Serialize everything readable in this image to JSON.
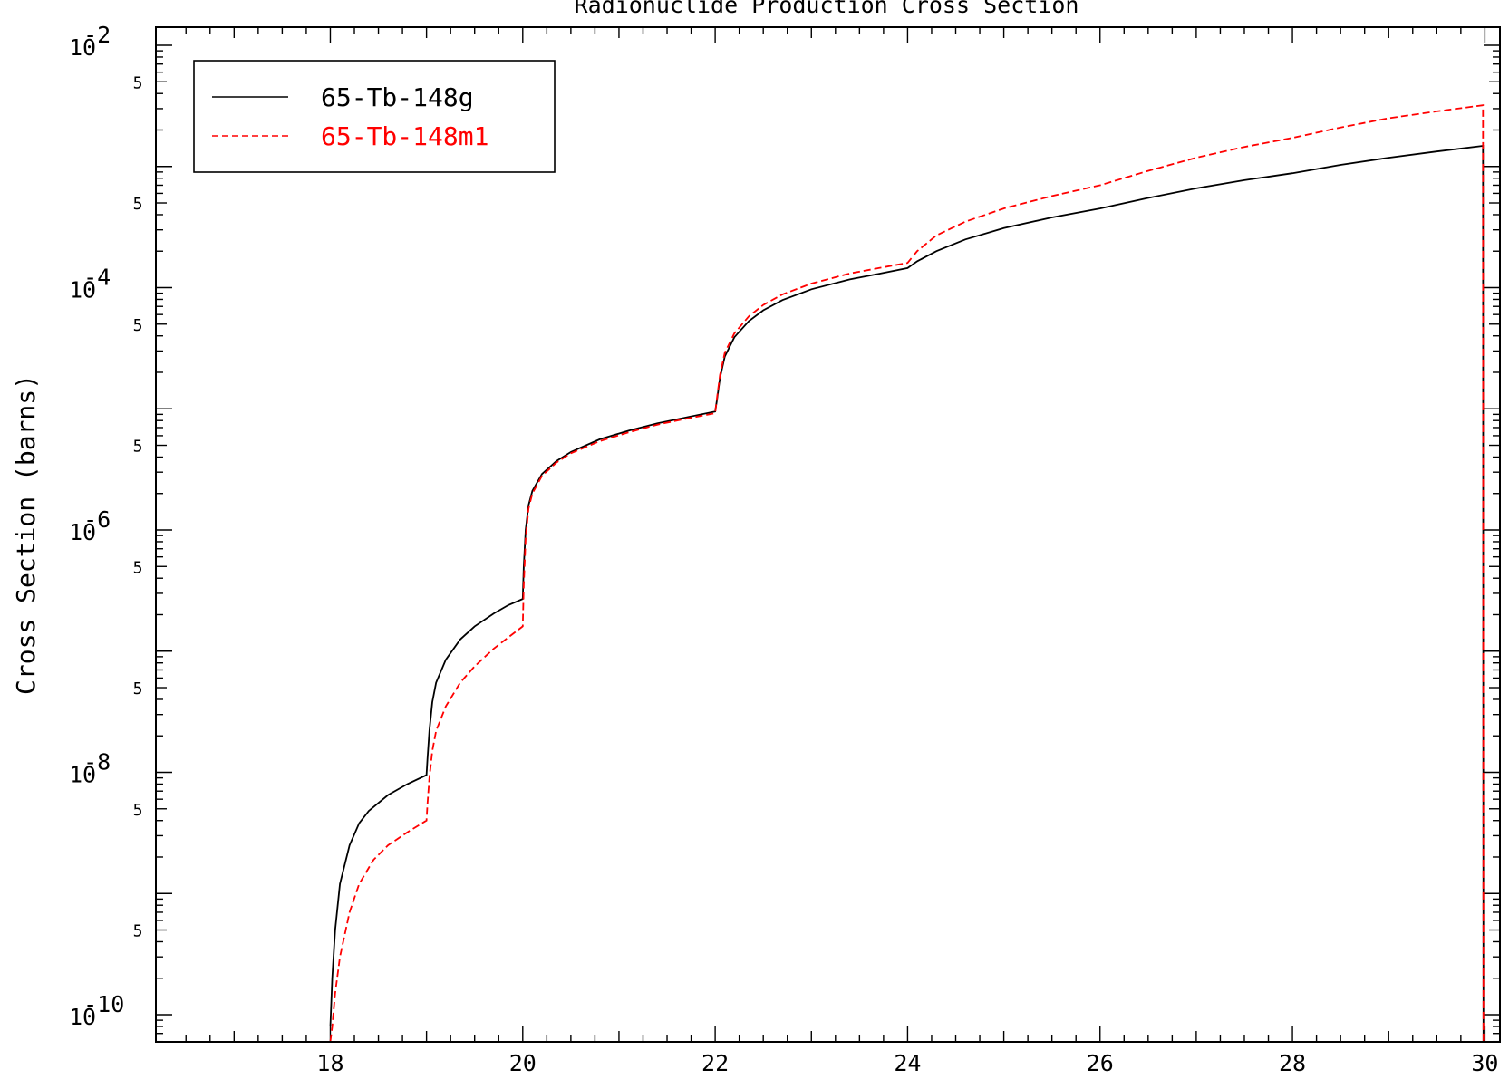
{
  "chart_data": {
    "type": "line",
    "title": "Radionuclide Production Cross Section",
    "xlabel": "",
    "ylabel": "Cross Section (barns)",
    "xlim": [
      16.3,
      30.1
    ],
    "ylim": [
      1e-10,
      0.01
    ],
    "y_scale": "log",
    "grid": false,
    "legend_position": "top-left",
    "x_ticks": [
      {
        "value": 18,
        "label": "18"
      },
      {
        "value": 20,
        "label": "20"
      },
      {
        "value": 22,
        "label": "22"
      },
      {
        "value": 24,
        "label": "24"
      },
      {
        "value": 26,
        "label": "26"
      },
      {
        "value": 28,
        "label": "28"
      },
      {
        "value": 30,
        "label": "30"
      }
    ],
    "y_major_ticks": [
      {
        "exp": -2,
        "base": "10",
        "sup": "-2"
      },
      {
        "exp": -4,
        "base": "10",
        "sup": "-4"
      },
      {
        "exp": -6,
        "base": "10",
        "sup": "-6"
      },
      {
        "exp": -8,
        "base": "10",
        "sup": "-8"
      },
      {
        "exp": -10,
        "base": "10",
        "sup": "-10"
      }
    ],
    "y_minor_label": "5",
    "series": [
      {
        "name": "65-Tb-148g",
        "color": "#000000",
        "dash": "solid",
        "x": [
          18.0,
          18.02,
          18.05,
          18.1,
          18.2,
          18.3,
          18.4,
          18.6,
          18.8,
          19.0,
          19.01,
          19.03,
          19.06,
          19.1,
          19.2,
          19.35,
          19.5,
          19.7,
          19.85,
          20.0,
          20.01,
          20.03,
          20.06,
          20.1,
          20.2,
          20.35,
          20.5,
          20.8,
          21.1,
          21.4,
          21.7,
          22.0,
          22.02,
          22.05,
          22.1,
          22.2,
          22.35,
          22.5,
          22.7,
          23.0,
          23.4,
          23.7,
          24.0,
          24.1,
          24.3,
          24.6,
          25.0,
          25.5,
          26.0,
          26.5,
          27.0,
          27.5,
          28.0,
          28.5,
          29.0,
          29.5,
          29.98,
          29.985,
          30.0
        ],
        "y": [
          8e-11,
          2e-10,
          5e-10,
          1.2e-09,
          2.5e-09,
          3.8e-09,
          4.8e-09,
          6.5e-09,
          8e-09,
          9.5e-09,
          1.3e-08,
          2.2e-08,
          3.8e-08,
          5.5e-08,
          8.5e-08,
          1.25e-07,
          1.6e-07,
          2.05e-07,
          2.4e-07,
          2.7e-07,
          5e-07,
          1e-06,
          1.6e-06,
          2.1e-06,
          2.9e-06,
          3.7e-06,
          4.4e-06,
          5.6e-06,
          6.6e-06,
          7.6e-06,
          8.5e-06,
          9.5e-06,
          1.2e-05,
          1.8e-05,
          2.7e-05,
          3.9e-05,
          5.3e-05,
          6.5e-05,
          7.9e-05,
          9.7e-05,
          0.000117,
          0.00013,
          0.000145,
          0.000165,
          0.0002,
          0.00025,
          0.00031,
          0.00038,
          0.00045,
          0.00055,
          0.00066,
          0.00077,
          0.00088,
          0.00103,
          0.00118,
          0.00133,
          0.00148,
          6e-11,
          6e-11
        ]
      },
      {
        "name": "65-Tb-148m1",
        "color": "#ff0000",
        "dash": "dashed",
        "x": [
          18.0,
          18.02,
          18.05,
          18.1,
          18.2,
          18.3,
          18.45,
          18.6,
          18.8,
          19.0,
          19.01,
          19.03,
          19.06,
          19.1,
          19.2,
          19.35,
          19.5,
          19.7,
          19.85,
          20.0,
          20.01,
          20.03,
          20.06,
          20.1,
          20.2,
          20.35,
          20.5,
          20.8,
          21.1,
          21.4,
          21.7,
          22.0,
          22.02,
          22.05,
          22.1,
          22.2,
          22.35,
          22.5,
          22.7,
          23.0,
          23.4,
          23.7,
          24.0,
          24.1,
          24.3,
          24.6,
          25.0,
          25.5,
          26.0,
          26.5,
          27.0,
          27.5,
          28.0,
          28.5,
          29.0,
          29.5,
          29.98,
          29.985,
          30.0
        ],
        "y": [
          6e-11,
          8e-11,
          1.5e-10,
          3e-10,
          7e-10,
          1.2e-09,
          1.9e-09,
          2.5e-09,
          3.2e-09,
          4e-09,
          5.5e-09,
          9e-09,
          1.5e-08,
          2.2e-08,
          3.5e-08,
          5.5e-08,
          7.5e-08,
          1.05e-07,
          1.3e-07,
          1.6e-07,
          3.5e-07,
          8.5e-07,
          1.5e-06,
          2e-06,
          2.8e-06,
          3.6e-06,
          4.3e-06,
          5.4e-06,
          6.4e-06,
          7.4e-06,
          8.3e-06,
          9.2e-06,
          1.25e-05,
          1.9e-05,
          2.9e-05,
          4.2e-05,
          5.8e-05,
          7.2e-05,
          8.8e-05,
          0.000108,
          0.000131,
          0.000145,
          0.00016,
          0.0002,
          0.00027,
          0.00035,
          0.00045,
          0.00057,
          0.0007,
          0.00092,
          0.00118,
          0.00145,
          0.00172,
          0.0021,
          0.0025,
          0.00285,
          0.0032,
          6e-11,
          6e-11
        ]
      }
    ]
  }
}
